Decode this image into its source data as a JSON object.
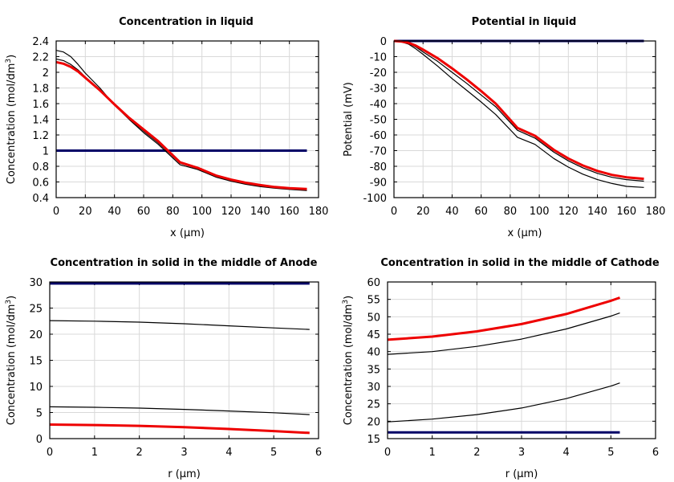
{
  "chart_data": [
    {
      "type": "line",
      "title": "Concentration in liquid",
      "xlabel": "x (µm)",
      "ylabel": "Concentration (mol/dm³)",
      "xlim": [
        0,
        180
      ],
      "ylim": [
        0.4,
        2.4
      ],
      "xticks": [
        0,
        20,
        40,
        60,
        80,
        100,
        120,
        140,
        160,
        180
      ],
      "yticks": [
        0.4,
        0.6,
        0.8,
        1,
        1.2,
        1.4,
        1.6,
        1.8,
        2,
        2.2,
        2.4
      ],
      "grid": true,
      "series": [
        {
          "color": "#000066",
          "width": 3,
          "x": [
            0,
            172
          ],
          "y": [
            1.0,
            1.0
          ]
        },
        {
          "color": "#000000",
          "width": 1.2,
          "x": [
            0,
            5,
            10,
            15,
            20,
            30,
            40,
            50,
            60,
            70,
            85,
            97,
            110,
            120,
            130,
            140,
            150,
            160,
            172
          ],
          "y": [
            2.28,
            2.26,
            2.2,
            2.1,
            1.99,
            1.8,
            1.58,
            1.4,
            1.23,
            1.08,
            0.82,
            0.76,
            0.66,
            0.61,
            0.57,
            0.54,
            0.52,
            0.505,
            0.49
          ]
        },
        {
          "color": "#000000",
          "width": 1.2,
          "x": [
            0,
            5,
            10,
            15,
            20,
            30,
            40,
            50,
            60,
            70,
            85,
            97,
            110,
            120,
            130,
            140,
            150,
            160,
            172
          ],
          "y": [
            2.17,
            2.15,
            2.1,
            2.03,
            1.94,
            1.77,
            1.58,
            1.41,
            1.25,
            1.1,
            0.84,
            0.77,
            0.67,
            0.62,
            0.58,
            0.55,
            0.53,
            0.51,
            0.5
          ]
        },
        {
          "color": "#ee0000",
          "width": 3,
          "x": [
            0,
            5,
            10,
            15,
            20,
            30,
            40,
            50,
            60,
            70,
            85,
            97,
            110,
            120,
            130,
            140,
            150,
            160,
            172
          ],
          "y": [
            2.13,
            2.11,
            2.07,
            2.01,
            1.93,
            1.77,
            1.59,
            1.42,
            1.27,
            1.12,
            0.85,
            0.78,
            0.68,
            0.63,
            0.59,
            0.56,
            0.535,
            0.52,
            0.51
          ]
        }
      ]
    },
    {
      "type": "line",
      "title": "Potential in liquid",
      "xlabel": "x (µm)",
      "ylabel": "Potential (mV)",
      "xlim": [
        0,
        180
      ],
      "ylim": [
        -100,
        0
      ],
      "xticks": [
        0,
        20,
        40,
        60,
        80,
        100,
        120,
        140,
        160,
        180
      ],
      "yticks": [
        -100,
        -90,
        -80,
        -70,
        -60,
        -50,
        -40,
        -30,
        -20,
        -10,
        0
      ],
      "grid": true,
      "series": [
        {
          "color": "#000066",
          "width": 3,
          "x": [
            0,
            172
          ],
          "y": [
            0,
            0
          ]
        },
        {
          "color": "#000000",
          "width": 1.2,
          "x": [
            0,
            5,
            10,
            15,
            20,
            30,
            40,
            50,
            60,
            70,
            85,
            97,
            110,
            120,
            130,
            140,
            150,
            160,
            172
          ],
          "y": [
            0,
            -0.5,
            -2,
            -5,
            -8.5,
            -16,
            -24,
            -31.5,
            -39,
            -47,
            -61.5,
            -66,
            -75,
            -80.5,
            -85,
            -88.5,
            -91,
            -92.8,
            -93.5
          ]
        },
        {
          "color": "#000000",
          "width": 1.2,
          "x": [
            0,
            5,
            10,
            15,
            20,
            30,
            40,
            50,
            60,
            70,
            85,
            97,
            110,
            120,
            130,
            140,
            150,
            160,
            172
          ],
          "y": [
            0,
            -0.4,
            -1.5,
            -3.8,
            -7,
            -13,
            -20,
            -27,
            -34.5,
            -42,
            -57,
            -62,
            -71,
            -76.5,
            -81,
            -84.5,
            -87,
            -88.5,
            -89.5
          ]
        },
        {
          "color": "#ee0000",
          "width": 3,
          "x": [
            0,
            5,
            10,
            15,
            20,
            30,
            40,
            50,
            60,
            70,
            85,
            97,
            110,
            120,
            130,
            140,
            150,
            160,
            172
          ],
          "y": [
            0,
            -0.3,
            -1.2,
            -3,
            -5.5,
            -11,
            -17.5,
            -24.5,
            -32,
            -40,
            -55.5,
            -60.5,
            -69.5,
            -75,
            -79.5,
            -83,
            -85.5,
            -87,
            -88
          ]
        }
      ]
    },
    {
      "type": "line",
      "title": "Concentration in solid in the middle of Anode",
      "xlabel": "r (µm)",
      "ylabel": "Concentration (mol/dm³)",
      "xlim": [
        0,
        6
      ],
      "ylim": [
        0,
        30
      ],
      "xticks": [
        0,
        1,
        2,
        3,
        4,
        5,
        6
      ],
      "yticks": [
        0,
        5,
        10,
        15,
        20,
        25,
        30
      ],
      "grid": true,
      "series": [
        {
          "color": "#000066",
          "width": 3,
          "x": [
            0,
            5.8
          ],
          "y": [
            29.7,
            29.7
          ]
        },
        {
          "color": "#000000",
          "width": 1.2,
          "x": [
            0,
            1,
            2,
            3,
            4,
            5,
            5.8
          ],
          "y": [
            22.6,
            22.5,
            22.3,
            22.0,
            21.6,
            21.2,
            20.9
          ]
        },
        {
          "color": "#000000",
          "width": 1.2,
          "x": [
            0,
            1,
            2,
            3,
            4,
            5,
            5.8
          ],
          "y": [
            6.1,
            6.0,
            5.85,
            5.6,
            5.3,
            4.95,
            4.6
          ]
        },
        {
          "color": "#ee0000",
          "width": 3,
          "x": [
            0,
            1,
            2,
            3,
            4,
            5,
            5.8
          ],
          "y": [
            2.7,
            2.6,
            2.45,
            2.2,
            1.85,
            1.45,
            1.1
          ]
        }
      ]
    },
    {
      "type": "line",
      "title": "Concentration in solid in the middle of Cathode",
      "xlabel": "r (µm)",
      "ylabel": "Concentration (mol/dm³)",
      "xlim": [
        0,
        6
      ],
      "ylim": [
        15,
        60
      ],
      "xticks": [
        0,
        1,
        2,
        3,
        4,
        5,
        6
      ],
      "yticks": [
        15,
        20,
        25,
        30,
        35,
        40,
        45,
        50,
        55,
        60
      ],
      "grid": true,
      "series": [
        {
          "color": "#000066",
          "width": 3,
          "x": [
            0,
            5.2
          ],
          "y": [
            16.8,
            16.8
          ]
        },
        {
          "color": "#000000",
          "width": 1.2,
          "x": [
            0,
            1,
            2,
            3,
            4,
            5,
            5.2
          ],
          "y": [
            19.8,
            20.6,
            21.9,
            23.8,
            26.5,
            30.1,
            31.0
          ]
        },
        {
          "color": "#000000",
          "width": 1.2,
          "x": [
            0,
            1,
            2,
            3,
            4,
            5,
            5.2
          ],
          "y": [
            39.2,
            40.0,
            41.5,
            43.6,
            46.5,
            50.2,
            51.1
          ]
        },
        {
          "color": "#ee0000",
          "width": 3,
          "x": [
            0,
            1,
            2,
            3,
            4,
            5,
            5.2
          ],
          "y": [
            43.4,
            44.3,
            45.8,
            47.9,
            50.8,
            54.6,
            55.5
          ]
        }
      ]
    }
  ]
}
